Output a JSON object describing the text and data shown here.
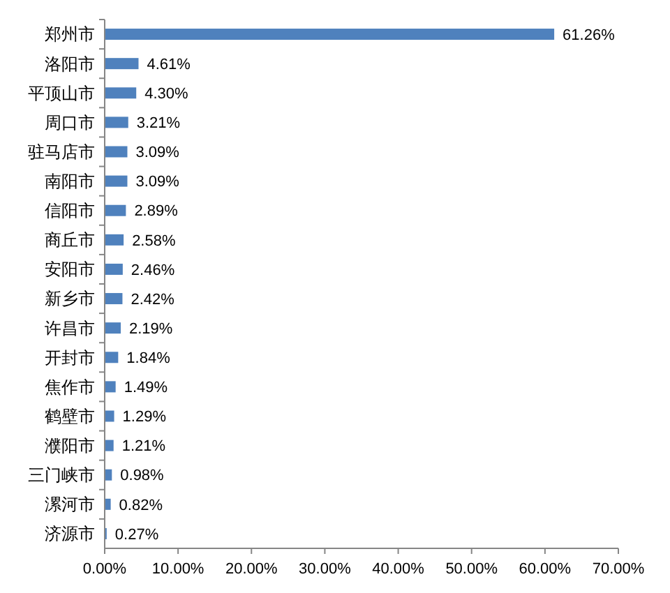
{
  "chart_data": {
    "type": "bar",
    "orientation": "horizontal",
    "categories": [
      "郑州市",
      "洛阳市",
      "平顶山市",
      "周口市",
      "驻马店市",
      "南阳市",
      "信阳市",
      "商丘市",
      "安阳市",
      "新乡市",
      "许昌市",
      "开封市",
      "焦作市",
      "鹤壁市",
      "濮阳市",
      "三门峡市",
      "漯河市",
      "济源市"
    ],
    "values": [
      61.26,
      4.61,
      4.3,
      3.21,
      3.09,
      3.09,
      2.89,
      2.58,
      2.46,
      2.42,
      2.19,
      1.84,
      1.49,
      1.29,
      1.21,
      0.98,
      0.82,
      0.27
    ],
    "value_labels": [
      "61.26%",
      "4.61%",
      "4.30%",
      "3.21%",
      "3.09%",
      "3.09%",
      "2.89%",
      "2.58%",
      "2.46%",
      "2.42%",
      "2.19%",
      "1.84%",
      "1.49%",
      "1.29%",
      "1.21%",
      "0.98%",
      "0.82%",
      "0.27%"
    ],
    "color": "#4f81bd",
    "xlim": [
      0,
      70
    ],
    "xticks": [
      {
        "value": 0,
        "label": "0.00%"
      },
      {
        "value": 10,
        "label": "10.00%"
      },
      {
        "value": 20,
        "label": "20.00%"
      },
      {
        "value": 30,
        "label": "30.00%"
      },
      {
        "value": 40,
        "label": "40.00%"
      },
      {
        "value": 50,
        "label": "50.00%"
      },
      {
        "value": 60,
        "label": "60.00%"
      },
      {
        "value": 70,
        "label": "70.00%"
      }
    ],
    "grid": false
  }
}
